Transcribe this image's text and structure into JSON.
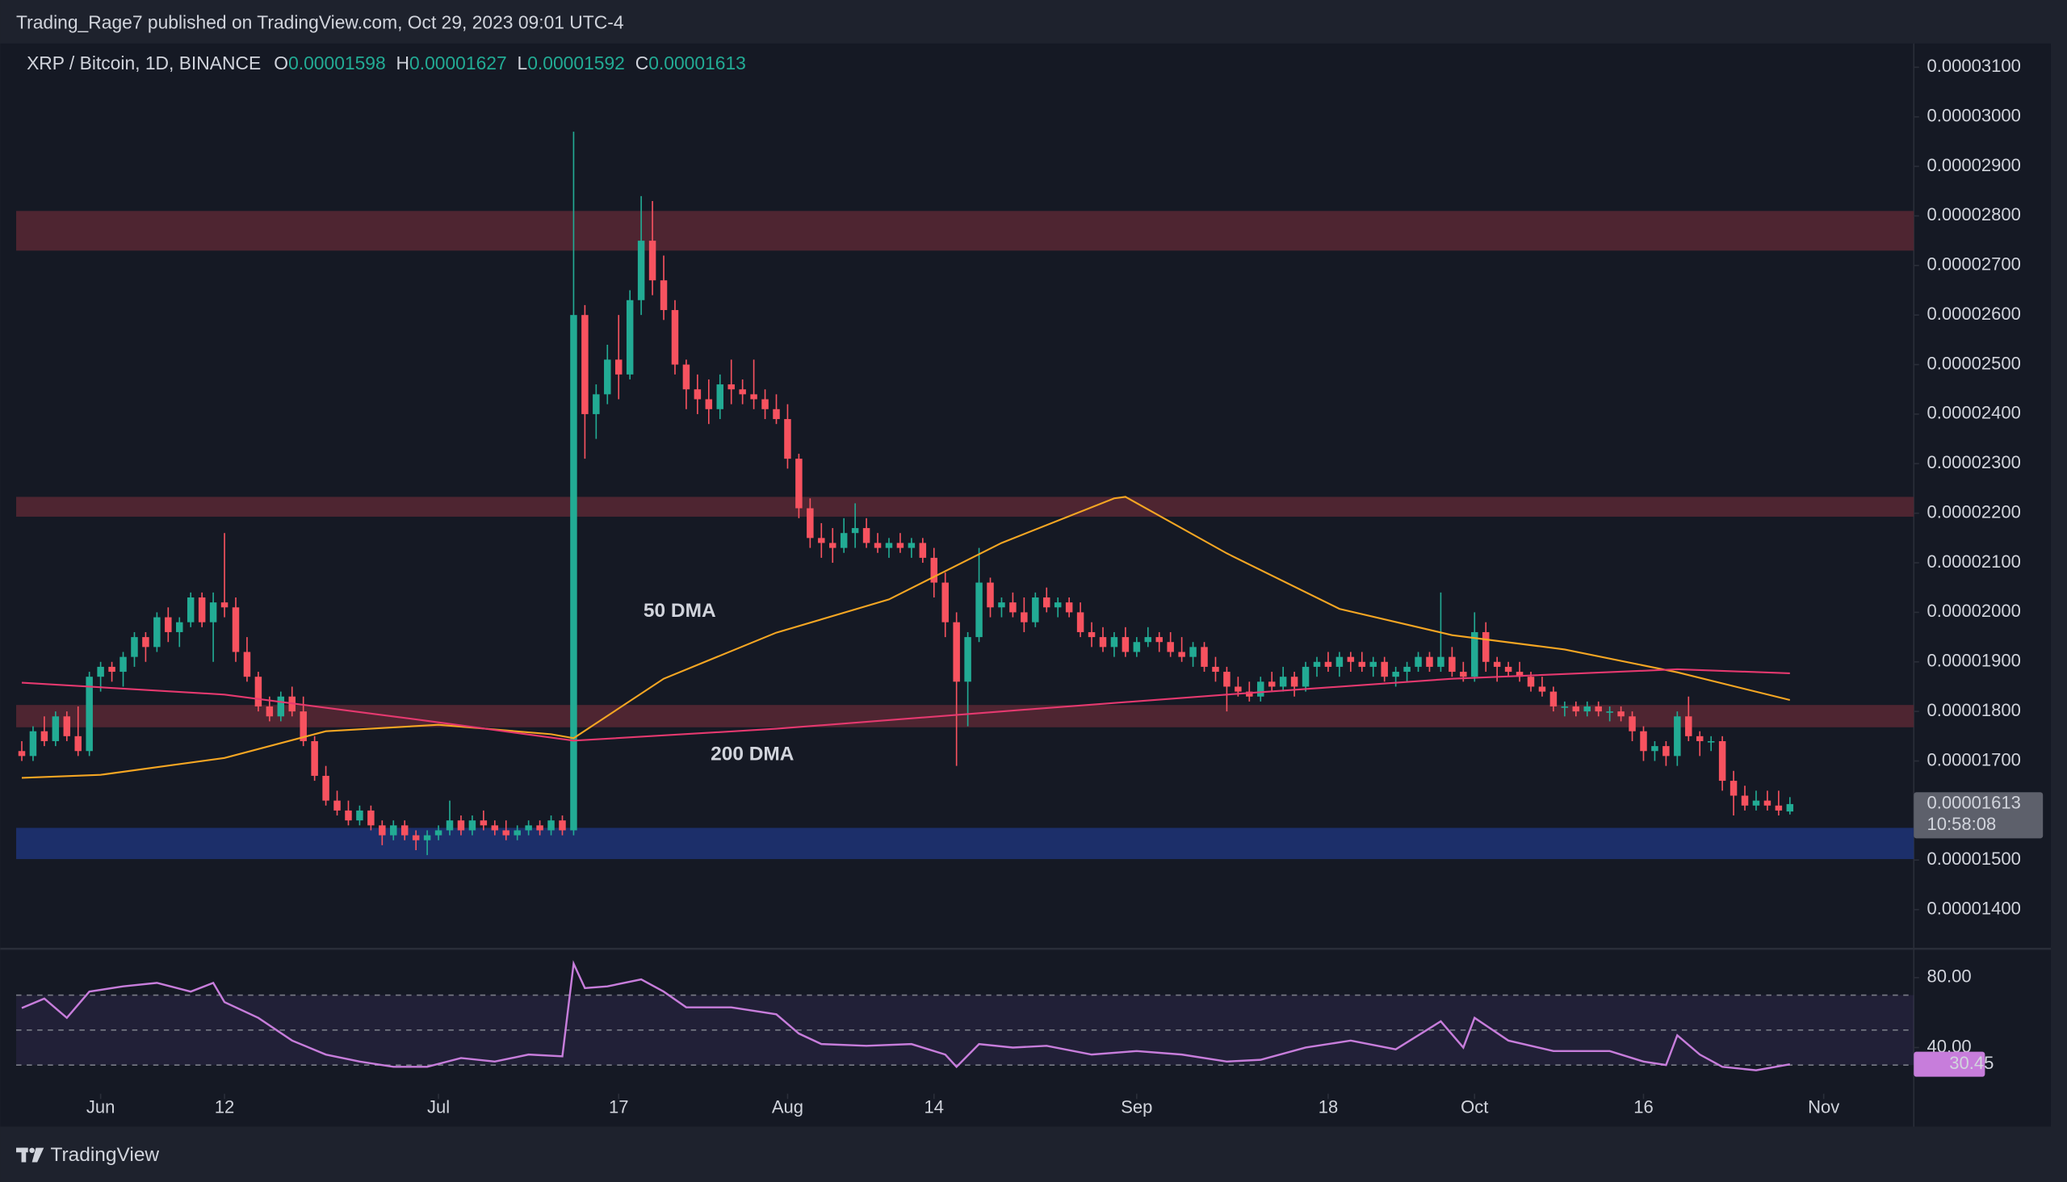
{
  "header": {
    "text": "Trading_Rage7 published on TradingView.com, Oct 29, 2023 09:01 UTC-4"
  },
  "legend": {
    "symbol": "XRP / Bitcoin, 1D, BINANCE",
    "labels": [
      "O",
      "H",
      "L",
      "C"
    ]
  },
  "countdown": "10:58:08",
  "footer": "TradingView",
  "chart_data": [
    {
      "type": "candlestick",
      "up_color": "#22ab94",
      "down_color": "#f7525f",
      "xlim": [
        -7.5,
        161
      ],
      "xticks": [
        {
          "value": 0,
          "label": "Jun"
        },
        {
          "value": 11,
          "label": "12"
        },
        {
          "value": 30,
          "label": "Jul"
        },
        {
          "value": 46,
          "label": "17"
        },
        {
          "value": 61,
          "label": "Aug"
        },
        {
          "value": 74,
          "label": "14"
        },
        {
          "value": 92,
          "label": "Sep"
        },
        {
          "value": 109,
          "label": "18"
        },
        {
          "value": 122,
          "label": "Oct"
        },
        {
          "value": 137,
          "label": "16"
        },
        {
          "value": 153,
          "label": "Nov"
        }
      ],
      "ylim": [
        1.321e-05,
        3.148e-05
      ],
      "yticks": [
        {
          "value": 1.4e-05,
          "label": "0.00001400"
        },
        {
          "value": 1.5e-05,
          "label": "0.00001500"
        },
        {
          "value": 1.6e-05,
          "label": "0.00001600"
        },
        {
          "value": 1.7e-05,
          "label": "0.00001700"
        },
        {
          "value": 1.8e-05,
          "label": "0.00001800"
        },
        {
          "value": 1.9e-05,
          "label": "0.00001900"
        },
        {
          "value": 2e-05,
          "label": "0.00002000"
        },
        {
          "value": 2.1e-05,
          "label": "0.00002100"
        },
        {
          "value": 2.2e-05,
          "label": "0.00002200"
        },
        {
          "value": 2.3e-05,
          "label": "0.00002300"
        },
        {
          "value": 2.4e-05,
          "label": "0.00002400"
        },
        {
          "value": 2.5e-05,
          "label": "0.00002500"
        },
        {
          "value": 2.6e-05,
          "label": "0.00002600"
        },
        {
          "value": 2.7e-05,
          "label": "0.00002700"
        },
        {
          "value": 2.8e-05,
          "label": "0.00002800"
        },
        {
          "value": 2.9e-05,
          "label": "0.00002900"
        },
        {
          "value": 3e-05,
          "label": "0.00003000"
        },
        {
          "value": 3.1e-05,
          "label": "0.00003100"
        }
      ],
      "zones": [
        {
          "from": 2.73e-05,
          "to": 2.81e-05,
          "color": "#4e2531"
        },
        {
          "from": 2.193e-05,
          "to": 2.233e-05,
          "color": "#4e2531"
        },
        {
          "from": 1.768e-05,
          "to": 1.813e-05,
          "color": "#4e2531"
        },
        {
          "from": 1.502e-05,
          "to": 1.565e-05,
          "color": "#1c2f6a"
        }
      ],
      "x": [
        -7,
        -6,
        -5,
        -4,
        -3,
        -2,
        -1,
        0,
        1,
        2,
        3,
        4,
        5,
        6,
        7,
        8,
        9,
        10,
        11,
        12,
        13,
        14,
        15,
        16,
        17,
        18,
        19,
        20,
        21,
        22,
        23,
        24,
        25,
        26,
        27,
        28,
        29,
        30,
        31,
        32,
        33,
        34,
        35,
        36,
        37,
        38,
        39,
        40,
        41,
        42,
        43,
        44,
        45,
        46,
        47,
        48,
        49,
        50,
        51,
        52,
        53,
        54,
        55,
        56,
        57,
        58,
        59,
        60,
        61,
        62,
        63,
        64,
        65,
        66,
        67,
        68,
        69,
        70,
        71,
        72,
        73,
        74,
        75,
        76,
        77,
        78,
        79,
        80,
        81,
        82,
        83,
        84,
        85,
        86,
        87,
        88,
        89,
        90,
        91,
        92,
        93,
        94,
        95,
        96,
        97,
        98,
        99,
        100,
        101,
        102,
        103,
        104,
        105,
        106,
        107,
        108,
        109,
        110,
        111,
        112,
        113,
        114,
        115,
        116,
        117,
        118,
        119,
        120,
        121,
        122,
        123,
        124,
        125,
        126,
        127,
        128,
        129,
        130,
        131,
        132,
        133,
        134,
        135,
        136,
        137,
        138,
        139,
        140,
        141,
        142,
        143,
        144,
        145,
        146,
        147,
        148,
        149,
        150
      ],
      "open": [
        1.72e-05,
        1.71e-05,
        1.76e-05,
        1.74e-05,
        1.79e-05,
        1.75e-05,
        1.72e-05,
        1.87e-05,
        1.89e-05,
        1.88e-05,
        1.91e-05,
        1.95e-05,
        1.93e-05,
        1.99e-05,
        1.96e-05,
        1.98e-05,
        2.03e-05,
        1.98e-05,
        2.02e-05,
        2.01e-05,
        1.92e-05,
        1.87e-05,
        1.81e-05,
        1.79e-05,
        1.83e-05,
        1.8e-05,
        1.74e-05,
        1.67e-05,
        1.62e-05,
        1.6e-05,
        1.58e-05,
        1.6e-05,
        1.57e-05,
        1.55e-05,
        1.57e-05,
        1.55e-05,
        1.54e-05,
        1.55e-05,
        1.56e-05,
        1.58e-05,
        1.56e-05,
        1.58e-05,
        1.57e-05,
        1.56e-05,
        1.55e-05,
        1.56e-05,
        1.57e-05,
        1.56e-05,
        1.58e-05,
        1.56e-05,
        2.6e-05,
        2.4e-05,
        2.44e-05,
        2.51e-05,
        2.48e-05,
        2.63e-05,
        2.75e-05,
        2.67e-05,
        2.61e-05,
        2.5e-05,
        2.45e-05,
        2.43e-05,
        2.41e-05,
        2.46e-05,
        2.45e-05,
        2.44e-05,
        2.43e-05,
        2.41e-05,
        2.39e-05,
        2.31e-05,
        2.21e-05,
        2.15e-05,
        2.14e-05,
        2.13e-05,
        2.16e-05,
        2.17e-05,
        2.14e-05,
        2.13e-05,
        2.14e-05,
        2.13e-05,
        2.14e-05,
        2.11e-05,
        2.06e-05,
        1.98e-05,
        1.86e-05,
        1.95e-05,
        2.06e-05,
        2.01e-05,
        2.02e-05,
        2e-05,
        1.98e-05,
        2.03e-05,
        2.01e-05,
        2.02e-05,
        2e-05,
        1.96e-05,
        1.95e-05,
        1.93e-05,
        1.95e-05,
        1.92e-05,
        1.94e-05,
        1.95e-05,
        1.94e-05,
        1.92e-05,
        1.91e-05,
        1.93e-05,
        1.89e-05,
        1.88e-05,
        1.85e-05,
        1.84e-05,
        1.83e-05,
        1.86e-05,
        1.85e-05,
        1.87e-05,
        1.85e-05,
        1.89e-05,
        1.9e-05,
        1.89e-05,
        1.91e-05,
        1.9e-05,
        1.89e-05,
        1.9e-05,
        1.87e-05,
        1.88e-05,
        1.89e-05,
        1.91e-05,
        1.89e-05,
        1.91e-05,
        1.88e-05,
        1.87e-05,
        1.96e-05,
        1.9e-05,
        1.89e-05,
        1.88e-05,
        1.87e-05,
        1.85e-05,
        1.84e-05,
        1.81e-05,
        1.81e-05,
        1.8e-05,
        1.81e-05,
        1.8e-05,
        1.8e-05,
        1.79e-05,
        1.76e-05,
        1.72e-05,
        1.73e-05,
        1.71e-05,
        1.79e-05,
        1.75e-05,
        1.74e-05,
        1.74e-05,
        1.66e-05,
        1.63e-05,
        1.61e-05,
        1.62e-05,
        1.61e-05,
        1.598e-05
      ],
      "high": [
        1.74e-05,
        1.77e-05,
        1.79e-05,
        1.8e-05,
        1.8e-05,
        1.81e-05,
        1.88e-05,
        1.9e-05,
        1.9e-05,
        1.92e-05,
        1.96e-05,
        1.96e-05,
        2e-05,
        2.01e-05,
        1.99e-05,
        2.04e-05,
        2.04e-05,
        2.04e-05,
        2.16e-05,
        2.03e-05,
        1.95e-05,
        1.88e-05,
        1.83e-05,
        1.84e-05,
        1.85e-05,
        1.83e-05,
        1.75e-05,
        1.69e-05,
        1.64e-05,
        1.62e-05,
        1.61e-05,
        1.61e-05,
        1.58e-05,
        1.58e-05,
        1.58e-05,
        1.56e-05,
        1.56e-05,
        1.57e-05,
        1.62e-05,
        1.59e-05,
        1.59e-05,
        1.6e-05,
        1.58e-05,
        1.58e-05,
        1.57e-05,
        1.58e-05,
        1.58e-05,
        1.59e-05,
        1.59e-05,
        2.97e-05,
        2.62e-05,
        2.46e-05,
        2.54e-05,
        2.6e-05,
        2.65e-05,
        2.84e-05,
        2.83e-05,
        2.72e-05,
        2.63e-05,
        2.51e-05,
        2.48e-05,
        2.47e-05,
        2.48e-05,
        2.51e-05,
        2.47e-05,
        2.51e-05,
        2.45e-05,
        2.44e-05,
        2.42e-05,
        2.32e-05,
        2.23e-05,
        2.18e-05,
        2.17e-05,
        2.19e-05,
        2.22e-05,
        2.19e-05,
        2.16e-05,
        2.15e-05,
        2.16e-05,
        2.15e-05,
        2.15e-05,
        2.13e-05,
        2.08e-05,
        2e-05,
        1.96e-05,
        2.13e-05,
        2.07e-05,
        2.03e-05,
        2.04e-05,
        2.03e-05,
        2.04e-05,
        2.05e-05,
        2.03e-05,
        2.03e-05,
        2.02e-05,
        1.98e-05,
        1.97e-05,
        1.96e-05,
        1.97e-05,
        1.95e-05,
        1.97e-05,
        1.96e-05,
        1.96e-05,
        1.95e-05,
        1.94e-05,
        1.94e-05,
        1.91e-05,
        1.89e-05,
        1.87e-05,
        1.86e-05,
        1.87e-05,
        1.88e-05,
        1.89e-05,
        1.88e-05,
        1.9e-05,
        1.91e-05,
        1.92e-05,
        1.92e-05,
        1.92e-05,
        1.92e-05,
        1.91e-05,
        1.91e-05,
        1.89e-05,
        1.9e-05,
        1.92e-05,
        1.92e-05,
        2.04e-05,
        1.93e-05,
        1.9e-05,
        2e-05,
        1.98e-05,
        1.91e-05,
        1.9e-05,
        1.9e-05,
        1.88e-05,
        1.87e-05,
        1.85e-05,
        1.82e-05,
        1.82e-05,
        1.82e-05,
        1.82e-05,
        1.81e-05,
        1.81e-05,
        1.8e-05,
        1.77e-05,
        1.74e-05,
        1.74e-05,
        1.8e-05,
        1.83e-05,
        1.76e-05,
        1.75e-05,
        1.75e-05,
        1.68e-05,
        1.65e-05,
        1.64e-05,
        1.64e-05,
        1.64e-05,
        1.627e-05
      ],
      "low": [
        1.7e-05,
        1.7e-05,
        1.73e-05,
        1.73e-05,
        1.74e-05,
        1.71e-05,
        1.71e-05,
        1.84e-05,
        1.86e-05,
        1.85e-05,
        1.89e-05,
        1.9e-05,
        1.92e-05,
        1.94e-05,
        1.93e-05,
        1.97e-05,
        1.97e-05,
        1.9e-05,
        1.99e-05,
        1.9e-05,
        1.86e-05,
        1.8e-05,
        1.78e-05,
        1.78e-05,
        1.79e-05,
        1.73e-05,
        1.66e-05,
        1.61e-05,
        1.59e-05,
        1.57e-05,
        1.57e-05,
        1.56e-05,
        1.53e-05,
        1.54e-05,
        1.54e-05,
        1.52e-05,
        1.51e-05,
        1.54e-05,
        1.55e-05,
        1.55e-05,
        1.55e-05,
        1.56e-05,
        1.55e-05,
        1.54e-05,
        1.54e-05,
        1.55e-05,
        1.55e-05,
        1.55e-05,
        1.55e-05,
        1.55e-05,
        2.31e-05,
        2.35e-05,
        2.42e-05,
        2.43e-05,
        2.47e-05,
        2.6e-05,
        2.64e-05,
        2.59e-05,
        2.48e-05,
        2.41e-05,
        2.4e-05,
        2.38e-05,
        2.39e-05,
        2.42e-05,
        2.42e-05,
        2.41e-05,
        2.39e-05,
        2.38e-05,
        2.29e-05,
        2.19e-05,
        2.13e-05,
        2.11e-05,
        2.1e-05,
        2.12e-05,
        2.13e-05,
        2.13e-05,
        2.12e-05,
        2.11e-05,
        2.12e-05,
        2.11e-05,
        2.1e-05,
        2.03e-05,
        1.95e-05,
        1.69e-05,
        1.77e-05,
        1.94e-05,
        1.99e-05,
        1.99e-05,
        1.99e-05,
        1.96e-05,
        1.97e-05,
        2e-05,
        1.99e-05,
        1.99e-05,
        1.95e-05,
        1.93e-05,
        1.92e-05,
        1.91e-05,
        1.91e-05,
        1.91e-05,
        1.93e-05,
        1.92e-05,
        1.91e-05,
        1.9e-05,
        1.89e-05,
        1.88e-05,
        1.86e-05,
        1.8e-05,
        1.83e-05,
        1.82e-05,
        1.82e-05,
        1.84e-05,
        1.84e-05,
        1.83e-05,
        1.84e-05,
        1.87e-05,
        1.88e-05,
        1.87e-05,
        1.88e-05,
        1.88e-05,
        1.87e-05,
        1.86e-05,
        1.85e-05,
        1.86e-05,
        1.88e-05,
        1.88e-05,
        1.88e-05,
        1.87e-05,
        1.86e-05,
        1.86e-05,
        1.88e-05,
        1.86e-05,
        1.87e-05,
        1.86e-05,
        1.84e-05,
        1.83e-05,
        1.8e-05,
        1.79e-05,
        1.79e-05,
        1.79e-05,
        1.79e-05,
        1.78e-05,
        1.78e-05,
        1.74e-05,
        1.7e-05,
        1.7e-05,
        1.69e-05,
        1.69e-05,
        1.74e-05,
        1.71e-05,
        1.72e-05,
        1.64e-05,
        1.59e-05,
        1.6e-05,
        1.6e-05,
        1.6e-05,
        1.59e-05,
        1.592e-05
      ],
      "close": [
        1.71e-05,
        1.76e-05,
        1.74e-05,
        1.79e-05,
        1.75e-05,
        1.72e-05,
        1.87e-05,
        1.89e-05,
        1.88e-05,
        1.91e-05,
        1.95e-05,
        1.93e-05,
        1.99e-05,
        1.96e-05,
        1.98e-05,
        2.03e-05,
        1.98e-05,
        2.02e-05,
        2.01e-05,
        1.92e-05,
        1.87e-05,
        1.81e-05,
        1.79e-05,
        1.83e-05,
        1.8e-05,
        1.74e-05,
        1.67e-05,
        1.62e-05,
        1.6e-05,
        1.58e-05,
        1.6e-05,
        1.57e-05,
        1.55e-05,
        1.57e-05,
        1.55e-05,
        1.54e-05,
        1.55e-05,
        1.56e-05,
        1.58e-05,
        1.56e-05,
        1.58e-05,
        1.57e-05,
        1.56e-05,
        1.55e-05,
        1.56e-05,
        1.57e-05,
        1.56e-05,
        1.58e-05,
        1.56e-05,
        2.6e-05,
        2.4e-05,
        2.44e-05,
        2.51e-05,
        2.48e-05,
        2.63e-05,
        2.75e-05,
        2.67e-05,
        2.61e-05,
        2.5e-05,
        2.45e-05,
        2.43e-05,
        2.41e-05,
        2.46e-05,
        2.45e-05,
        2.44e-05,
        2.43e-05,
        2.41e-05,
        2.39e-05,
        2.31e-05,
        2.21e-05,
        2.15e-05,
        2.14e-05,
        2.13e-05,
        2.16e-05,
        2.17e-05,
        2.14e-05,
        2.13e-05,
        2.14e-05,
        2.13e-05,
        2.14e-05,
        2.11e-05,
        2.06e-05,
        1.98e-05,
        1.86e-05,
        1.95e-05,
        2.06e-05,
        2.01e-05,
        2.02e-05,
        2e-05,
        1.98e-05,
        2.03e-05,
        2.01e-05,
        2.02e-05,
        2e-05,
        1.96e-05,
        1.95e-05,
        1.93e-05,
        1.95e-05,
        1.92e-05,
        1.94e-05,
        1.95e-05,
        1.94e-05,
        1.92e-05,
        1.91e-05,
        1.93e-05,
        1.89e-05,
        1.88e-05,
        1.85e-05,
        1.84e-05,
        1.83e-05,
        1.86e-05,
        1.85e-05,
        1.87e-05,
        1.85e-05,
        1.89e-05,
        1.9e-05,
        1.89e-05,
        1.91e-05,
        1.9e-05,
        1.89e-05,
        1.9e-05,
        1.87e-05,
        1.88e-05,
        1.89e-05,
        1.91e-05,
        1.89e-05,
        1.91e-05,
        1.88e-05,
        1.87e-05,
        1.96e-05,
        1.9e-05,
        1.89e-05,
        1.88e-05,
        1.87e-05,
        1.85e-05,
        1.84e-05,
        1.81e-05,
        1.81e-05,
        1.8e-05,
        1.81e-05,
        1.8e-05,
        1.8e-05,
        1.79e-05,
        1.76e-05,
        1.72e-05,
        1.73e-05,
        1.71e-05,
        1.79e-05,
        1.75e-05,
        1.74e-05,
        1.74e-05,
        1.66e-05,
        1.63e-05,
        1.61e-05,
        1.62e-05,
        1.61e-05,
        1.6e-05,
        1.613e-05
      ],
      "series": [
        {
          "name": "50 DMA",
          "color": "#f5a623",
          "x": [
            -7,
            0,
            11,
            20,
            30,
            40,
            42,
            50,
            60,
            70,
            80,
            90,
            91,
            100,
            110,
            120,
            130,
            140,
            150
          ],
          "values": [
            1.666e-05,
            1.672e-05,
            1.706e-05,
            1.76e-05,
            1.773e-05,
            1.754e-05,
            1.746e-05,
            1.866e-05,
            1.959e-05,
            2.026e-05,
            2.14e-05,
            2.23e-05,
            2.233e-05,
            2.119e-05,
            2.007e-05,
            1.954e-05,
            1.925e-05,
            1.879e-05,
            1.823e-05
          ]
        },
        {
          "name": "200 DMA",
          "color": "#e5396f",
          "x": [
            -7,
            11,
            30,
            42,
            60,
            80,
            100,
            120,
            140,
            150
          ],
          "values": [
            1.858e-05,
            1.834e-05,
            1.778e-05,
            1.741e-05,
            1.765e-05,
            1.8e-05,
            1.834e-05,
            1.866e-05,
            1.885e-05,
            1.877e-05
          ]
        }
      ]
    },
    {
      "type": "line",
      "color": "#c77ddb",
      "xlim": [
        -7.5,
        161
      ],
      "ylim": [
        13.6,
        95
      ],
      "yticks": [
        {
          "value": 80,
          "label": "80.00"
        },
        {
          "value": 40,
          "label": "40.00"
        }
      ],
      "levels": [
        30,
        50,
        70
      ],
      "x": [
        -7,
        -5,
        -3,
        -1,
        2,
        5,
        8,
        10,
        11,
        14,
        17,
        20,
        23,
        26,
        29,
        32,
        35,
        38,
        41,
        42,
        43,
        45,
        48,
        50,
        52,
        56,
        60,
        62,
        64,
        68,
        72,
        75,
        76,
        78,
        81,
        84,
        88,
        92,
        96,
        100,
        103,
        107,
        111,
        115,
        119,
        121,
        122,
        125,
        129,
        134,
        137,
        139,
        140,
        142,
        144,
        147,
        150
      ],
      "values": [
        62.6,
        68,
        57,
        72,
        75,
        77,
        72,
        77,
        66,
        57,
        44,
        36,
        32,
        29,
        29,
        34,
        32,
        36,
        35,
        88,
        74,
        75,
        79,
        72,
        63,
        63,
        59,
        48,
        42,
        41,
        42,
        36,
        29,
        42,
        40,
        41,
        36,
        38,
        36,
        32,
        33,
        40,
        44,
        39,
        55,
        40,
        57,
        44,
        38,
        38,
        32,
        30,
        47,
        36,
        29,
        27,
        30.45
      ]
    }
  ]
}
